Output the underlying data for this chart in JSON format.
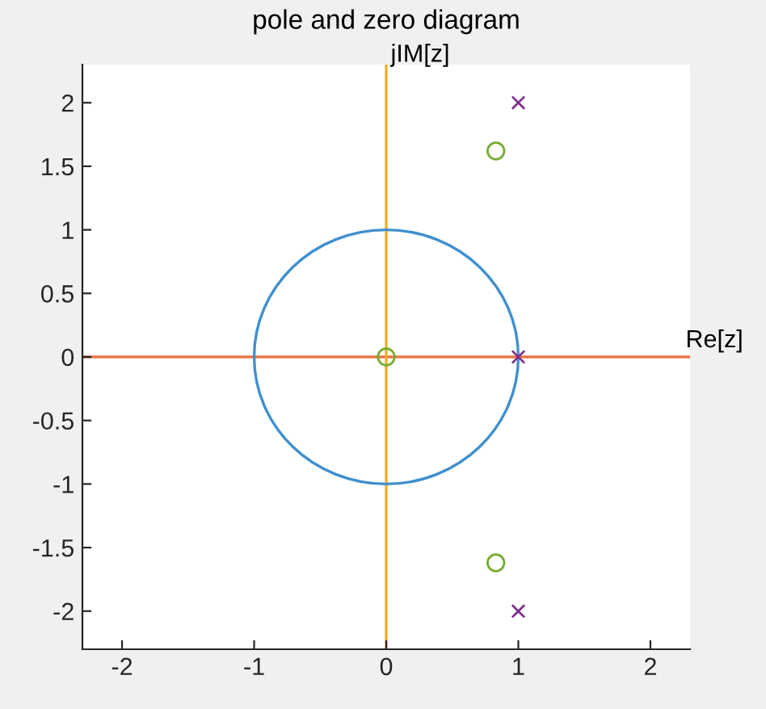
{
  "chart_data": {
    "type": "scatter",
    "title": "pole and zero diagram",
    "xlim": [
      -2.3,
      2.3
    ],
    "ylim": [
      -2.3,
      2.3
    ],
    "xticks": [
      -2,
      -1,
      0,
      1,
      2
    ],
    "yticks": [
      -2,
      -1.5,
      -1,
      -0.5,
      0,
      0.5,
      1,
      1.5,
      2
    ],
    "grid": false,
    "legend": false,
    "series": [
      {
        "color": "#77ac30",
        "marker": "circle",
        "x": [
          0,
          0.83,
          0.83
        ],
        "values": [
          0,
          1.62,
          -1.62
        ]
      },
      {
        "color": "#7e2f8e",
        "marker": "cross",
        "x": [
          1,
          1,
          1
        ],
        "values": [
          0,
          2,
          -2
        ]
      }
    ],
    "ref_lines": [
      {
        "axis": "y",
        "value": 0,
        "color": "#e8764a",
        "line_style": "solid"
      },
      {
        "axis": "x",
        "value": 0,
        "color": "#edb120",
        "line_style": "solid"
      }
    ],
    "annotations": [
      {
        "text": "Re[z]",
        "x": 2.3,
        "y": 0
      },
      {
        "text": "jIM[z]",
        "x": 0,
        "y": 2.3
      }
    ]
  }
}
